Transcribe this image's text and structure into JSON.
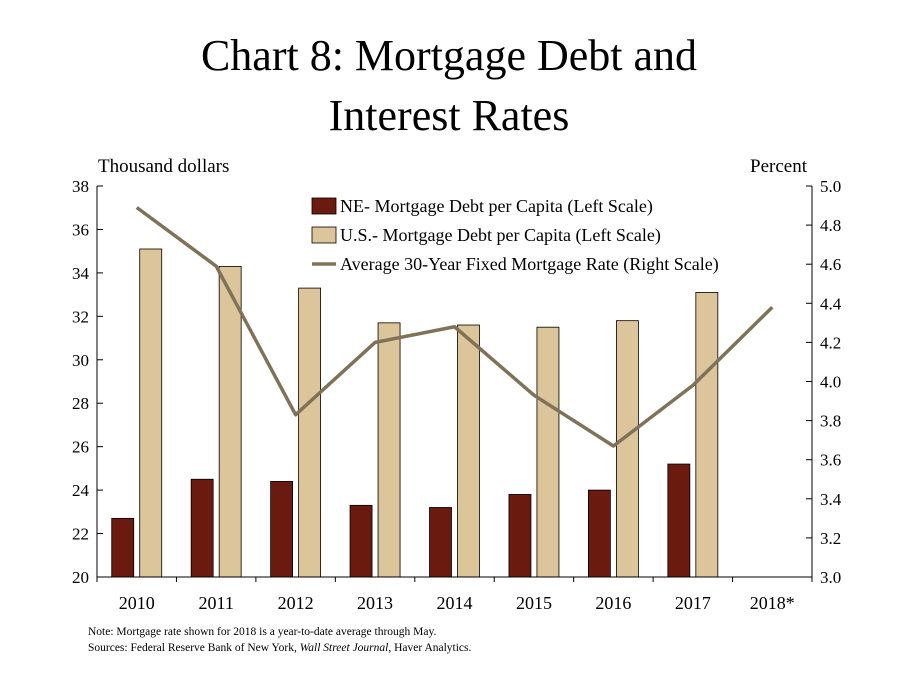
{
  "title_line1": "Chart 8: Mortgage Debt and",
  "title_line2": "Interest Rates",
  "left_axis_unit": "Thousand dollars",
  "right_axis_unit": "Percent",
  "note": "Note: Mortgage rate shown for 2018 is a year-to-date average through May.",
  "sources_prefix": "Sources: Federal Reserve Bank of New York, ",
  "sources_italic": "Wall Street Journal",
  "sources_suffix": ", Haver Analytics.",
  "colors": {
    "ne_bar": "#6b1a10",
    "us_bar": "#dcc49b",
    "rate_line": "#7f7259"
  },
  "chart_data": {
    "type": "bar",
    "categories": [
      "2010",
      "2011",
      "2012",
      "2013",
      "2014",
      "2015",
      "2016",
      "2017",
      "2018*"
    ],
    "series": [
      {
        "name": "NE- Mortgage Debt per Capita (Left Scale)",
        "type": "bar",
        "axis": "left",
        "values": [
          22.7,
          24.5,
          24.4,
          23.3,
          23.2,
          23.8,
          24.0,
          25.2,
          null
        ]
      },
      {
        "name": "U.S.- Mortgage Debt per Capita (Left Scale)",
        "type": "bar",
        "axis": "left",
        "values": [
          35.1,
          34.3,
          33.3,
          31.7,
          31.6,
          31.5,
          31.8,
          33.1,
          null
        ]
      },
      {
        "name": "Average 30-Year Fixed Mortgage Rate (Right Scale)",
        "type": "line",
        "axis": "right",
        "values": [
          4.89,
          4.59,
          3.83,
          4.2,
          4.28,
          3.93,
          3.67,
          3.98,
          4.38
        ]
      }
    ],
    "left_axis": {
      "min": 20,
      "max": 38,
      "ticks": [
        "20",
        "22",
        "24",
        "26",
        "28",
        "30",
        "32",
        "34",
        "36",
        "38"
      ]
    },
    "right_axis": {
      "min": 3.0,
      "max": 5.0,
      "ticks": [
        "3.0",
        "3.2",
        "3.4",
        "3.6",
        "3.8",
        "4.0",
        "4.2",
        "4.4",
        "4.6",
        "4.8",
        "5.0"
      ]
    },
    "legend_position": "top-right",
    "grid": false
  }
}
